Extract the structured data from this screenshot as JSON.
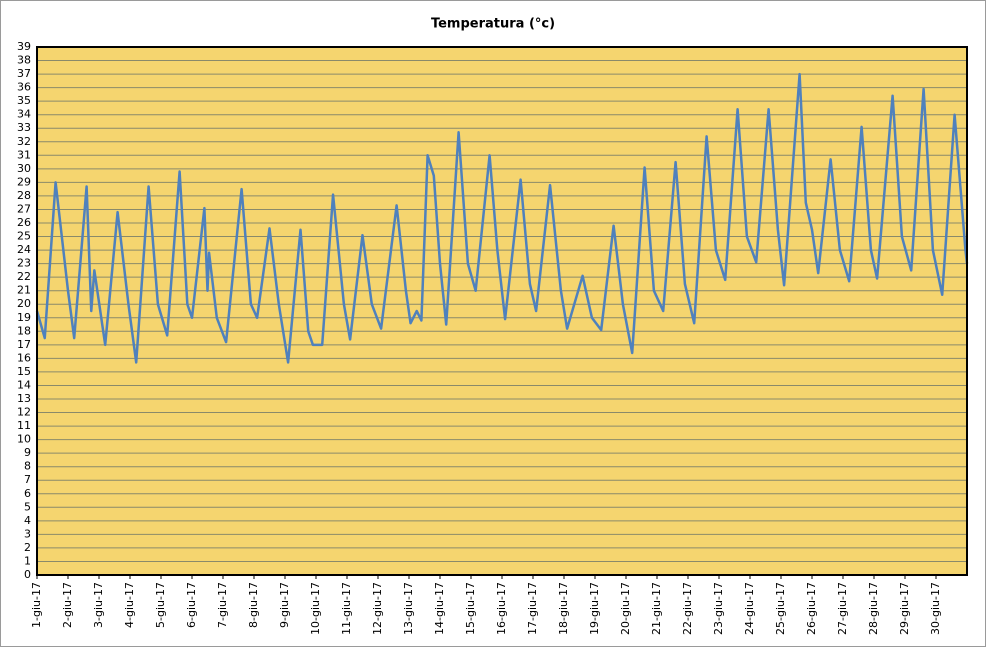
{
  "chart_data": {
    "type": "line",
    "title": "Temperatura (°c)",
    "x": [
      1.0,
      1.25,
      1.6,
      2.0,
      2.2,
      2.6,
      2.75,
      2.85,
      3.2,
      3.6,
      3.95,
      4.2,
      4.6,
      4.9,
      5.2,
      5.6,
      5.85,
      6.0,
      6.4,
      6.5,
      6.55,
      6.8,
      7.1,
      7.6,
      7.9,
      8.1,
      8.5,
      8.8,
      9.1,
      9.5,
      9.75,
      9.9,
      10.2,
      10.55,
      10.9,
      11.1,
      11.5,
      11.8,
      12.1,
      12.6,
      12.9,
      13.05,
      13.25,
      13.4,
      13.6,
      13.8,
      14.0,
      14.2,
      14.6,
      14.9,
      15.15,
      15.6,
      15.85,
      16.1,
      16.6,
      16.9,
      17.1,
      17.55,
      17.9,
      18.1,
      18.6,
      18.9,
      19.2,
      19.6,
      19.9,
      20.2,
      20.6,
      20.9,
      21.2,
      21.6,
      21.9,
      22.2,
      22.6,
      22.9,
      23.2,
      23.6,
      23.9,
      24.2,
      24.6,
      24.9,
      25.1,
      25.6,
      25.8,
      26.0,
      26.2,
      26.6,
      26.9,
      27.2,
      27.6,
      27.9,
      28.1,
      28.6,
      28.9,
      29.2,
      29.6,
      29.9,
      30.2,
      30.6,
      30.95,
      31.0
    ],
    "series": [
      {
        "name": "Temperatura",
        "color": "#4f81bd",
        "values": [
          19.5,
          17.5,
          29,
          21,
          17.5,
          28.7,
          19.5,
          22.5,
          17,
          26.8,
          20,
          15.7,
          28.7,
          20,
          17.7,
          29.8,
          20,
          19,
          27.1,
          21,
          23.8,
          19,
          17.2,
          28.5,
          20,
          19,
          25.6,
          20,
          15.7,
          25.5,
          18,
          17,
          17,
          28.1,
          20,
          17.4,
          25.1,
          20,
          18.2,
          27.3,
          21,
          18.6,
          19.5,
          18.8,
          31,
          29.5,
          23,
          18.5,
          32.7,
          23,
          21,
          31,
          24,
          18.9,
          29.2,
          21.5,
          19.5,
          28.8,
          21,
          18.2,
          22.1,
          19,
          18.1,
          25.8,
          20,
          16.4,
          30.1,
          21,
          19.5,
          30.5,
          21.5,
          18.6,
          32.4,
          24,
          21.8,
          34.4,
          25,
          23.1,
          34.4,
          25.5,
          21.4,
          37,
          27.5,
          25.5,
          22.3,
          30.7,
          24,
          21.7,
          33.1,
          24,
          21.9,
          35.4,
          25,
          22.5,
          35.9,
          24,
          20.7,
          34,
          24,
          23
        ]
      }
    ],
    "xlim": [
      1,
      31
    ],
    "xticks": [
      {
        "value": 1,
        "label": "1-giu-17"
      },
      {
        "value": 2,
        "label": "2-giu-17"
      },
      {
        "value": 3,
        "label": "3-giu-17"
      },
      {
        "value": 4,
        "label": "4-giu-17"
      },
      {
        "value": 5,
        "label": "5-giu-17"
      },
      {
        "value": 6,
        "label": "6-giu-17"
      },
      {
        "value": 7,
        "label": "7-giu-17"
      },
      {
        "value": 8,
        "label": "8-giu-17"
      },
      {
        "value": 9,
        "label": "9-giu-17"
      },
      {
        "value": 10,
        "label": "10-giu-17"
      },
      {
        "value": 11,
        "label": "11-giu-17"
      },
      {
        "value": 12,
        "label": "12-giu-17"
      },
      {
        "value": 13,
        "label": "13-giu-17"
      },
      {
        "value": 14,
        "label": "14-giu-17"
      },
      {
        "value": 15,
        "label": "15-giu-17"
      },
      {
        "value": 16,
        "label": "16-giu-17"
      },
      {
        "value": 17,
        "label": "17-giu-17"
      },
      {
        "value": 18,
        "label": "18-giu-17"
      },
      {
        "value": 19,
        "label": "19-giu-17"
      },
      {
        "value": 20,
        "label": "20-giu-17"
      },
      {
        "value": 21,
        "label": "21-giu-17"
      },
      {
        "value": 22,
        "label": "22-giu-17"
      },
      {
        "value": 23,
        "label": "23-giu-17"
      },
      {
        "value": 24,
        "label": "24-giu-17"
      },
      {
        "value": 25,
        "label": "25-giu-17"
      },
      {
        "value": 26,
        "label": "26-giu-17"
      },
      {
        "value": 27,
        "label": "27-giu-17"
      },
      {
        "value": 28,
        "label": "28-giu-17"
      },
      {
        "value": 29,
        "label": "29-giu-17"
      },
      {
        "value": 30,
        "label": "30-giu-17"
      }
    ],
    "ylim": [
      0,
      39
    ],
    "yticks": [
      0,
      1,
      2,
      3,
      4,
      5,
      6,
      7,
      8,
      9,
      10,
      11,
      12,
      13,
      14,
      15,
      16,
      17,
      18,
      19,
      20,
      21,
      22,
      23,
      24,
      25,
      26,
      27,
      28,
      29,
      30,
      31,
      32,
      33,
      34,
      35,
      36,
      37,
      38,
      39
    ],
    "grid": true,
    "plot_background": "#f5d56f"
  }
}
